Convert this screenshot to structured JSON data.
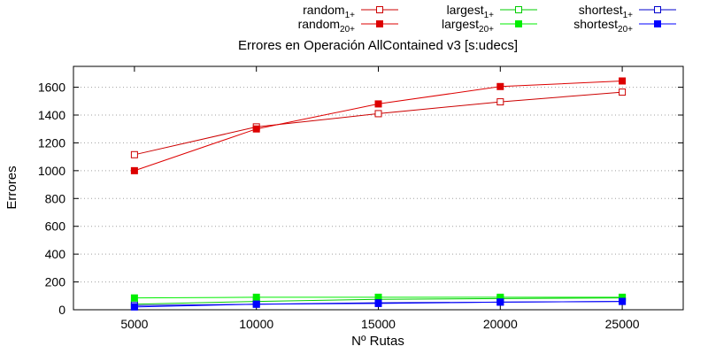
{
  "chart_data": {
    "type": "line",
    "title": "Errores en Operación AllContained v3 [s:udecs]",
    "xlabel": "Nº Rutas",
    "ylabel": "Errores",
    "x": [
      5000,
      10000,
      15000,
      20000,
      25000
    ],
    "xlim": [
      2500,
      27500
    ],
    "ylim": [
      0,
      1750
    ],
    "xticks": [
      "5000",
      "10000",
      "15000",
      "20000",
      "25000"
    ],
    "yticks": [
      "0",
      "200",
      "400",
      "600",
      "800",
      "1000",
      "1200",
      "1400",
      "1600"
    ],
    "grid": true,
    "legend_position": "top (above plot)",
    "series": [
      {
        "base": "random",
        "sub": "1+",
        "color": "#cc0000",
        "marker": "open-square",
        "values": [
          1115,
          1315,
          1410,
          1495,
          1565
        ]
      },
      {
        "base": "random",
        "sub": "20+",
        "color": "#dd0000",
        "marker": "filled-square",
        "values": [
          1000,
          1300,
          1480,
          1605,
          1645
        ]
      },
      {
        "base": "largest",
        "sub": "1+",
        "color": "#00cc00",
        "marker": "open-square",
        "values": [
          40,
          60,
          75,
          80,
          85
        ]
      },
      {
        "base": "largest",
        "sub": "20+",
        "color": "#00ee00",
        "marker": "filled-square",
        "values": [
          85,
          90,
          90,
          90,
          90
        ]
      },
      {
        "base": "shortest",
        "sub": "1+",
        "color": "#0000cc",
        "marker": "open-square",
        "values": [
          30,
          40,
          50,
          55,
          60
        ]
      },
      {
        "base": "shortest",
        "sub": "20+",
        "color": "#0000ff",
        "marker": "filled-square",
        "values": [
          20,
          40,
          45,
          55,
          60
        ]
      }
    ]
  }
}
